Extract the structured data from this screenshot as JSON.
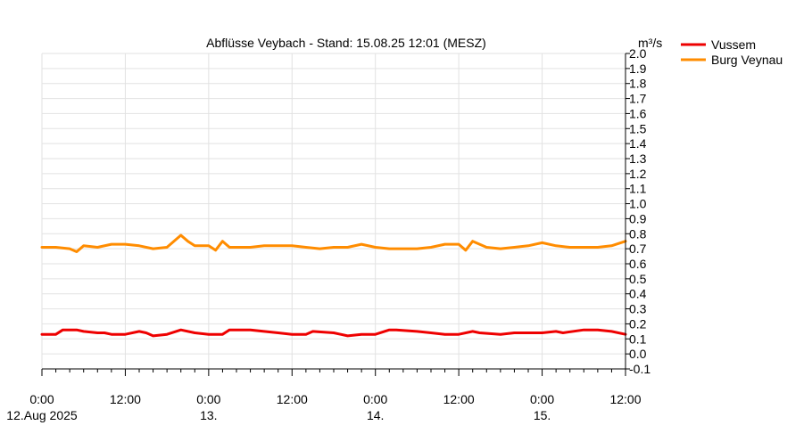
{
  "chart_data": {
    "type": "line",
    "title": "Abflüsse Veybach - Stand: 15.08.25 12:01 (MESZ)",
    "ylabel": "m³/s",
    "ylim": [
      -0.1,
      2.0
    ],
    "yticks": [
      -0.1,
      0.0,
      0.1,
      0.2,
      0.3,
      0.4,
      0.5,
      0.6,
      0.7,
      0.8,
      0.9,
      1.0,
      1.1,
      1.2,
      1.3,
      1.4,
      1.5,
      1.6,
      1.7,
      1.8,
      1.9,
      2.0
    ],
    "ytick_labels": [
      "-0.1",
      "0.0",
      "0.1",
      "0.2",
      "0.3",
      "0.4",
      "0.5",
      "0.6",
      "0.7",
      "0.8",
      "0.9",
      "1.0",
      "1.1",
      "1.2",
      "1.3",
      "1.4",
      "1.5",
      "1.6",
      "1.7",
      "1.8",
      "1.9",
      "2.0"
    ],
    "xlim": [
      "2025-08-12 00:00",
      "2025-08-15 12:00"
    ],
    "xticks": [
      {
        "x": "2025-08-12 00:00",
        "label": "0:00",
        "sublabel": "12.Aug 2025"
      },
      {
        "x": "2025-08-12 12:00",
        "label": "12:00",
        "sublabel": ""
      },
      {
        "x": "2025-08-13 00:00",
        "label": "0:00",
        "sublabel": "13."
      },
      {
        "x": "2025-08-13 12:00",
        "label": "12:00",
        "sublabel": ""
      },
      {
        "x": "2025-08-14 00:00",
        "label": "0:00",
        "sublabel": "14."
      },
      {
        "x": "2025-08-14 12:00",
        "label": "12:00",
        "sublabel": ""
      },
      {
        "x": "2025-08-15 00:00",
        "label": "0:00",
        "sublabel": "15."
      },
      {
        "x": "2025-08-15 12:00",
        "label": "12:00",
        "sublabel": ""
      }
    ],
    "grid": true,
    "legend_position": "top-right",
    "series": [
      {
        "name": "Vussem",
        "color": "#ee0000",
        "x": [
          "2025-08-12 00:00",
          "2025-08-12 02:00",
          "2025-08-12 03:00",
          "2025-08-12 05:00",
          "2025-08-12 06:00",
          "2025-08-12 08:00",
          "2025-08-12 09:00",
          "2025-08-12 10:00",
          "2025-08-12 12:00",
          "2025-08-12 14:00",
          "2025-08-12 15:00",
          "2025-08-12 16:00",
          "2025-08-12 18:00",
          "2025-08-12 20:00",
          "2025-08-12 22:00",
          "2025-08-13 00:00",
          "2025-08-13 02:00",
          "2025-08-13 03:00",
          "2025-08-13 06:00",
          "2025-08-13 08:00",
          "2025-08-13 10:00",
          "2025-08-13 12:00",
          "2025-08-13 14:00",
          "2025-08-13 15:00",
          "2025-08-13 18:00",
          "2025-08-13 20:00",
          "2025-08-13 22:00",
          "2025-08-14 00:00",
          "2025-08-14 02:00",
          "2025-08-14 03:00",
          "2025-08-14 06:00",
          "2025-08-14 08:00",
          "2025-08-14 10:00",
          "2025-08-14 12:00",
          "2025-08-14 14:00",
          "2025-08-14 15:00",
          "2025-08-14 18:00",
          "2025-08-14 20:00",
          "2025-08-14 22:00",
          "2025-08-15 00:00",
          "2025-08-15 02:00",
          "2025-08-15 03:00",
          "2025-08-15 06:00",
          "2025-08-15 08:00",
          "2025-08-15 10:00",
          "2025-08-15 12:00"
        ],
        "values": [
          0.13,
          0.13,
          0.16,
          0.16,
          0.15,
          0.14,
          0.14,
          0.13,
          0.13,
          0.15,
          0.14,
          0.12,
          0.13,
          0.16,
          0.14,
          0.13,
          0.13,
          0.16,
          0.16,
          0.15,
          0.14,
          0.13,
          0.13,
          0.15,
          0.14,
          0.12,
          0.13,
          0.13,
          0.16,
          0.16,
          0.15,
          0.14,
          0.13,
          0.13,
          0.15,
          0.14,
          0.13,
          0.14,
          0.14,
          0.14,
          0.15,
          0.14,
          0.16,
          0.16,
          0.15,
          0.13
        ]
      },
      {
        "name": "Burg Veynau",
        "color": "#ff8c00",
        "x": [
          "2025-08-12 00:00",
          "2025-08-12 02:00",
          "2025-08-12 04:00",
          "2025-08-12 05:00",
          "2025-08-12 06:00",
          "2025-08-12 08:00",
          "2025-08-12 10:00",
          "2025-08-12 12:00",
          "2025-08-12 14:00",
          "2025-08-12 16:00",
          "2025-08-12 18:00",
          "2025-08-12 20:00",
          "2025-08-12 21:00",
          "2025-08-12 22:00",
          "2025-08-13 00:00",
          "2025-08-13 01:00",
          "2025-08-13 02:00",
          "2025-08-13 03:00",
          "2025-08-13 04:00",
          "2025-08-13 06:00",
          "2025-08-13 08:00",
          "2025-08-13 10:00",
          "2025-08-13 12:00",
          "2025-08-13 14:00",
          "2025-08-13 16:00",
          "2025-08-13 18:00",
          "2025-08-13 20:00",
          "2025-08-13 22:00",
          "2025-08-14 00:00",
          "2025-08-14 02:00",
          "2025-08-14 04:00",
          "2025-08-14 06:00",
          "2025-08-14 08:00",
          "2025-08-14 10:00",
          "2025-08-14 12:00",
          "2025-08-14 13:00",
          "2025-08-14 14:00",
          "2025-08-14 16:00",
          "2025-08-14 18:00",
          "2025-08-14 20:00",
          "2025-08-14 22:00",
          "2025-08-15 00:00",
          "2025-08-15 02:00",
          "2025-08-15 04:00",
          "2025-08-15 06:00",
          "2025-08-15 08:00",
          "2025-08-15 10:00",
          "2025-08-15 12:00"
        ],
        "values": [
          0.71,
          0.71,
          0.7,
          0.68,
          0.72,
          0.71,
          0.73,
          0.73,
          0.72,
          0.7,
          0.71,
          0.79,
          0.75,
          0.72,
          0.72,
          0.69,
          0.75,
          0.71,
          0.71,
          0.71,
          0.72,
          0.72,
          0.72,
          0.71,
          0.7,
          0.71,
          0.71,
          0.73,
          0.71,
          0.7,
          0.7,
          0.7,
          0.71,
          0.73,
          0.73,
          0.69,
          0.75,
          0.71,
          0.7,
          0.71,
          0.72,
          0.74,
          0.72,
          0.71,
          0.71,
          0.71,
          0.72,
          0.75
        ]
      }
    ]
  }
}
